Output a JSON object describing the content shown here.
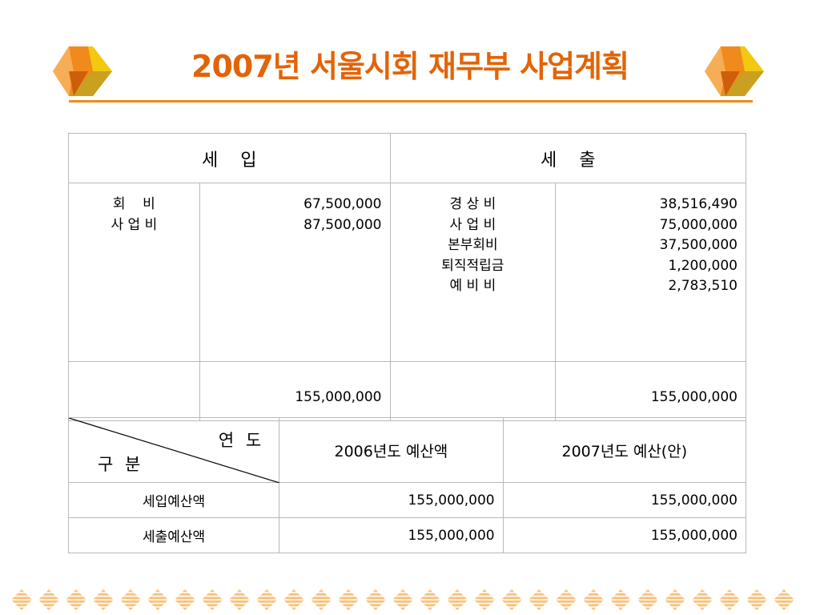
{
  "title": "2007년 서울시회 재무부 사업계획",
  "revenue_table": {
    "header_income": "세    입",
    "header_expense": "세    출",
    "income_items": [
      "회    비",
      "사 업 비"
    ],
    "income_amounts": [
      "67,500,000",
      "87,500,000"
    ],
    "expense_items": [
      "경 상 비",
      "사 업 비",
      "본부회비",
      "퇴직적립금",
      "예 비 비"
    ],
    "expense_amounts": [
      "38,516,490",
      "75,000,000",
      "37,500,000",
      "1,200,000",
      "2,783,510"
    ],
    "income_total": "155,000,000",
    "expense_total": "155,000,000"
  },
  "budget_table": {
    "corner_top": "연 도",
    "corner_bottom": "구 분",
    "col_2006": "2006년도 예산액",
    "col_2007": "2007년도 예산(안)",
    "rows": [
      {
        "label": "세입예산액",
        "v2006": "155,000,000",
        "v2007": "155,000,000"
      },
      {
        "label": "세출예산액",
        "v2006": "155,000,000",
        "v2007": "155,000,000"
      }
    ]
  },
  "colors": {
    "title": "#e26408",
    "rule": "#f08a1c",
    "cube_orange": "#f08a1c",
    "cube_yellow": "#f2c811"
  }
}
